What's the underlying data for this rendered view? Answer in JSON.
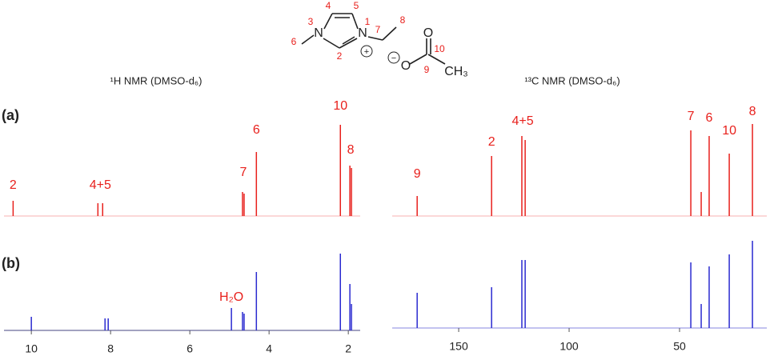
{
  "structure": {
    "atoms": [
      "N",
      "N",
      "O",
      "O",
      "CH₃"
    ],
    "charges": [
      "+",
      "−"
    ],
    "atom_numbers": [
      "1",
      "2",
      "3",
      "4",
      "5",
      "6",
      "7",
      "8",
      "9",
      "10"
    ]
  },
  "panels": [
    "(a)",
    "(b)"
  ],
  "chart_data": [
    {
      "type": "stem",
      "title": "¹H NMR (DMSO-d₆)",
      "xlim": [
        10.69,
        1.7
      ],
      "xticks": [
        10,
        8,
        6,
        4,
        2
      ],
      "ylim": [
        0,
        120
      ],
      "series": [
        {
          "color": "#e8201c",
          "x": [
            10.46,
            8.32,
            8.2,
            4.67,
            4.63,
            4.32,
            2.2,
            1.96,
            1.92
          ],
          "values": [
            19,
            16,
            16,
            30,
            28,
            80,
            114,
            63,
            60
          ],
          "annotations": [
            {
              "text": "2",
              "x": 10.46,
              "y": 38
            },
            {
              "text": "4+5",
              "x": 8.26,
              "y": 38
            },
            {
              "text": "7",
              "x": 4.65,
              "y": 54
            },
            {
              "text": "6",
              "x": 4.32,
              "y": 107
            },
            {
              "text": "10",
              "x": 2.2,
              "y": 137
            },
            {
              "text": "8",
              "x": 1.94,
              "y": 82
            }
          ]
        },
        {
          "color": "#2a2ad0",
          "x": [
            10.0,
            8.14,
            8.06,
            4.95,
            4.67,
            4.63,
            4.32,
            2.2,
            1.96,
            1.92
          ],
          "values": [
            17,
            15,
            15,
            28,
            23,
            21,
            73,
            96,
            58,
            33
          ],
          "annotations": [
            {
              "text": "H₂O",
              "x": 4.95,
              "y": 41
            }
          ]
        }
      ]
    },
    {
      "type": "stem",
      "title": "¹³C NMR (DMSO-d₆)",
      "xlim": [
        180.1,
        10.5
      ],
      "xticks": [
        150,
        100,
        50
      ],
      "ylim": [
        0,
        120
      ],
      "series": [
        {
          "color": "#e8201c",
          "x": [
            168.8,
            135.1,
            121.4,
            119.9,
            44.9,
            40.2,
            36.6,
            27.5,
            17.0
          ],
          "values": [
            25,
            75,
            100,
            95,
            107,
            30,
            100,
            78,
            115
          ],
          "annotations": [
            {
              "text": "9",
              "x": 168.8,
              "y": 52
            },
            {
              "text": "2",
              "x": 135.1,
              "y": 92
            },
            {
              "text": "4+5",
              "x": 121.0,
              "y": 118
            },
            {
              "text": "7",
              "x": 44.9,
              "y": 124
            },
            {
              "text": "6",
              "x": 36.6,
              "y": 122
            },
            {
              "text": "10",
              "x": 27.5,
              "y": 106
            },
            {
              "text": "8",
              "x": 17.0,
              "y": 130
            }
          ]
        },
        {
          "color": "#2a2ad0",
          "x": [
            168.8,
            135.1,
            121.4,
            119.9,
            44.9,
            40.2,
            36.6,
            27.5,
            17.0
          ],
          "values": [
            44,
            51,
            85,
            85,
            82,
            30,
            77,
            92,
            109
          ],
          "annotations": []
        }
      ]
    }
  ]
}
